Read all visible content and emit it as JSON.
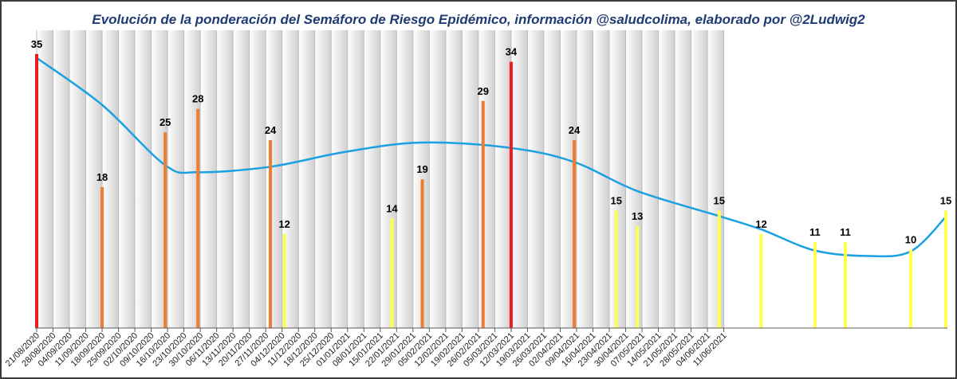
{
  "colors": {
    "red": "#ee1c1c",
    "orange": "#ed7d31",
    "yellow": "#ffff4d",
    "trend": "#1ba1e2",
    "grid_light": "#ffffff",
    "grid_dark": "#d0d0d0"
  },
  "chart_data": {
    "type": "bar",
    "title": "Evolución de la ponderación del Semáforo de Riesgo Epidémico, información @saludcolima, elaborado por @2Ludwig2",
    "xlabel": "",
    "ylabel": "",
    "ylim": [
      0,
      36
    ],
    "grid": true,
    "legend": "none",
    "categories": [
      "21/08/2020",
      "28/08/2020",
      "04/09/2020",
      "11/09/2020",
      "18/09/2020",
      "25/09/2020",
      "02/10/2020",
      "09/10/2020",
      "16/10/2020",
      "23/10/2020",
      "30/10/2020",
      "06/11/2020",
      "13/11/2020",
      "20/11/2020",
      "27/11/2020",
      "04/12/2020",
      "11/12/2020",
      "18/12/2020",
      "25/12/2020",
      "01/01/2021",
      "08/01/2021",
      "15/01/2021",
      "22/01/2021",
      "29/01/2021",
      "05/02/2021",
      "12/02/2021",
      "19/02/2021",
      "26/02/2021",
      "05/03/2021",
      "12/03/2021",
      "19/03/2021",
      "26/03/2021",
      "02/04/2021",
      "09/04/2021",
      "16/04/2021",
      "23/04/2021",
      "30/04/2021",
      "07/05/2021",
      "14/05/2021",
      "21/05/2021",
      "28/05/2021",
      "04/06/2021",
      "11/06/2021"
    ],
    "series": [
      {
        "type": "bar",
        "points": [
          {
            "date": "2020-08-21",
            "value": 35,
            "color": "red"
          },
          {
            "date": "2020-09-18",
            "value": 18,
            "color": "orange"
          },
          {
            "date": "2020-10-15",
            "value": 25,
            "color": "orange"
          },
          {
            "date": "2020-10-29",
            "value": 28,
            "color": "orange"
          },
          {
            "date": "2020-11-29",
            "value": 24,
            "color": "orange"
          },
          {
            "date": "2020-12-05",
            "value": 12,
            "color": "yellow"
          },
          {
            "date": "2021-01-20",
            "value": 14,
            "color": "yellow"
          },
          {
            "date": "2021-02-02",
            "value": 19,
            "color": "orange"
          },
          {
            "date": "2021-02-28",
            "value": 29,
            "color": "orange"
          },
          {
            "date": "2021-03-12",
            "value": 34,
            "color": "red"
          },
          {
            "date": "2021-04-08",
            "value": 24,
            "color": "orange"
          },
          {
            "date": "2021-04-26",
            "value": 15,
            "color": "yellow"
          },
          {
            "date": "2021-05-05",
            "value": 13,
            "color": "yellow"
          },
          {
            "date": "2021-06-09",
            "value": 15,
            "color": "yellow"
          },
          {
            "date": "2021-06-27",
            "value": 12,
            "color": "yellow"
          },
          {
            "date": "2021-07-20",
            "value": 11,
            "color": "yellow"
          },
          {
            "date": "2021-08-02",
            "value": 11,
            "color": "yellow"
          },
          {
            "date": "2021-08-30",
            "value": 10,
            "color": "yellow"
          },
          {
            "date": "2021-09-14",
            "value": 15,
            "color": "yellow"
          }
        ]
      },
      {
        "type": "line",
        "smooth": true,
        "color": "trend",
        "points": [
          {
            "date": "2020-08-21",
            "value": 34.5
          },
          {
            "date": "2020-09-18",
            "value": 28.5
          },
          {
            "date": "2020-10-15",
            "value": 20.8
          },
          {
            "date": "2020-10-29",
            "value": 19.9
          },
          {
            "date": "2020-11-29",
            "value": 20.6
          },
          {
            "date": "2020-12-31",
            "value": 22.5
          },
          {
            "date": "2021-02-02",
            "value": 23.7
          },
          {
            "date": "2021-03-12",
            "value": 23.0
          },
          {
            "date": "2021-04-08",
            "value": 21.2
          },
          {
            "date": "2021-05-05",
            "value": 17.5
          },
          {
            "date": "2021-06-09",
            "value": 14.3
          },
          {
            "date": "2021-06-27",
            "value": 12.6
          },
          {
            "date": "2021-07-20",
            "value": 9.9
          },
          {
            "date": "2021-08-12",
            "value": 9.2
          },
          {
            "date": "2021-08-30",
            "value": 9.8
          },
          {
            "date": "2021-09-14",
            "value": 14.2
          }
        ]
      }
    ]
  }
}
